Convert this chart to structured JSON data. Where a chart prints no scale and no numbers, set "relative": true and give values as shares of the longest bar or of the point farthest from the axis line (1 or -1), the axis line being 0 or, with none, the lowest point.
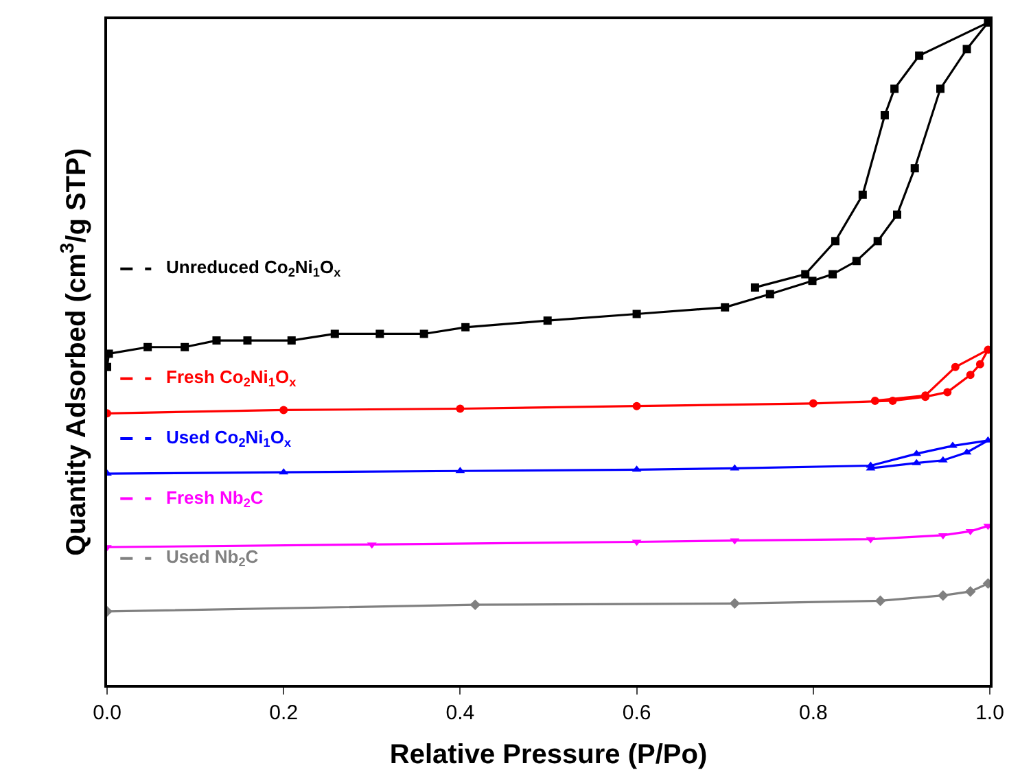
{
  "chart_data": {
    "type": "line",
    "relative": true,
    "xlabel": "Relative Pressure (P/Po)",
    "ylabel": "Quantity Adsorbed (cm$^{3}$/g STP)",
    "xlim": [
      0,
      1
    ],
    "xticks": [
      {
        "value": 0,
        "label": "0.0"
      },
      0.2,
      0.4,
      0.6,
      0.8,
      {
        "value": 1,
        "label": "1.0"
      }
    ],
    "legend": "left",
    "line_style": "solid",
    "series": [
      {
        "name": "Unreduced Co$_{2}$Ni$_{1}$O$_{x}$",
        "color": "#000000",
        "marker": "square",
        "x": [
          0.0,
          0.002,
          0.046,
          0.088,
          0.124,
          0.159,
          0.209,
          0.258,
          0.309,
          0.359,
          0.406,
          0.499,
          0.6,
          0.7,
          0.751,
          0.799,
          0.822,
          0.849,
          0.873,
          0.895,
          0.915,
          0.944,
          0.974,
          0.998,
          0.92,
          0.892,
          0.881,
          0.856,
          0.825,
          0.791,
          0.734
        ],
        "values": [
          0.48,
          0.5,
          0.51,
          0.51,
          0.52,
          0.52,
          0.52,
          0.53,
          0.53,
          0.53,
          0.54,
          0.55,
          0.56,
          0.57,
          0.59,
          0.61,
          0.62,
          0.64,
          0.67,
          0.71,
          0.78,
          0.9,
          0.96,
          1.0,
          0.95,
          0.9,
          0.86,
          0.74,
          0.67,
          0.62,
          0.6
        ]
      },
      {
        "name": "Fresh Co$_{2}$Ni$_{1}$O$_{x}$",
        "color": "#ff0000",
        "marker": "circle",
        "x": [
          0.0,
          0.2,
          0.4,
          0.6,
          0.8,
          0.89,
          0.927,
          0.952,
          0.978,
          0.989,
          0.998,
          0.961,
          0.927,
          0.87
        ],
        "values": [
          0.41,
          0.415,
          0.417,
          0.421,
          0.425,
          0.429,
          0.435,
          0.442,
          0.468,
          0.484,
          0.506,
          0.48,
          0.437,
          0.429
        ]
      },
      {
        "name": "Used Co$_{2}$Ni$_{1}$O$_{x}$",
        "color": "#0000ff",
        "marker": "triangle",
        "x": [
          0.0,
          0.2,
          0.4,
          0.6,
          0.711,
          0.865,
          0.917,
          0.958,
          0.998,
          0.974,
          0.947,
          0.917,
          0.865
        ],
        "values": [
          0.319,
          0.321,
          0.323,
          0.325,
          0.327,
          0.331,
          0.349,
          0.361,
          0.369,
          0.351,
          0.339,
          0.335,
          0.327
        ]
      },
      {
        "name": "Fresh Nb$_{2}$C",
        "color": "#ff00ff",
        "marker": "triangle-down",
        "x": [
          0.0,
          0.3,
          0.6,
          0.711,
          0.865,
          0.947,
          0.978,
          0.998
        ],
        "values": [
          0.208,
          0.212,
          0.216,
          0.218,
          0.22,
          0.226,
          0.232,
          0.24
        ]
      },
      {
        "name": "Used Nb$_{2}$C",
        "color": "#808080",
        "marker": "diamond",
        "x": [
          0.0,
          0.417,
          0.711,
          0.876,
          0.947,
          0.978,
          0.998
        ],
        "values": [
          0.111,
          0.121,
          0.123,
          0.127,
          0.135,
          0.141,
          0.153
        ]
      }
    ]
  }
}
